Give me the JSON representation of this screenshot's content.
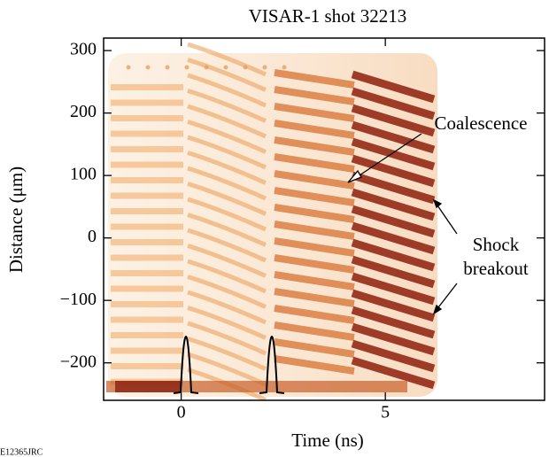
{
  "chart_data": {
    "type": "image",
    "title": "VISAR-1 shot 32213",
    "xlabel": "Time (ns)",
    "ylabel": "Distance (μm)",
    "xlim": [
      -1.9,
      8.9
    ],
    "xticks": [
      0,
      5
    ],
    "ylim": [
      -260,
      320
    ],
    "yticks": [
      {
        "value": -200,
        "label": "−200"
      },
      {
        "value": -100,
        "label": "−100"
      },
      0,
      100,
      200,
      300
    ],
    "annotations": [
      "Coalescence",
      [
        "Shock",
        "breakout"
      ]
    ],
    "figure_id": "E12365JRC"
  }
}
